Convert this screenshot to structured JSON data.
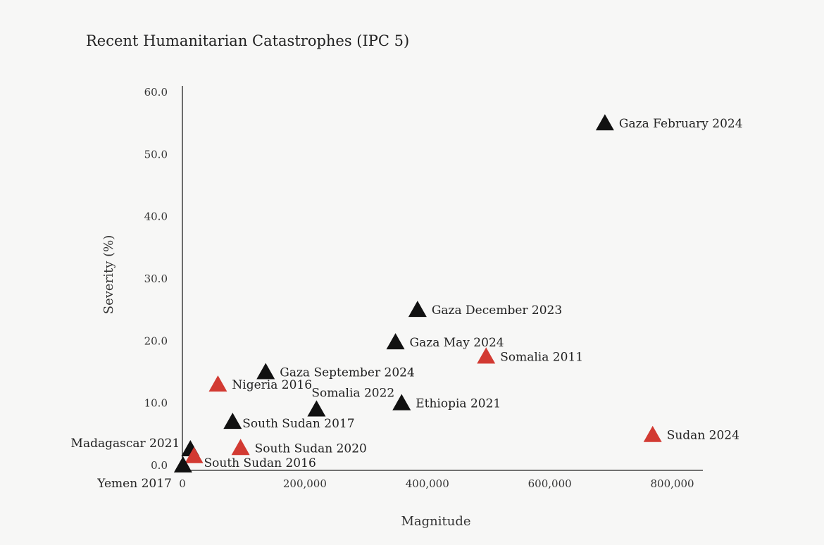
{
  "chart_data": {
    "type": "scatter",
    "title": "Recent Humanitarian Catastrophes (IPC 5)",
    "xlabel": "Magnitude",
    "ylabel": "Severity (%)",
    "xlim": [
      0,
      850000
    ],
    "ylim": [
      0,
      60
    ],
    "xticks": [
      {
        "value": 0,
        "label": "0"
      },
      {
        "value": 200000,
        "label": "200,000"
      },
      {
        "value": 400000,
        "label": "400,000"
      },
      {
        "value": 600000,
        "label": "600,000"
      },
      {
        "value": 800000,
        "label": "800,000"
      }
    ],
    "yticks": [
      {
        "value": 0,
        "label": "0.0"
      },
      {
        "value": 10,
        "label": "10.0"
      },
      {
        "value": 20,
        "label": "20.0"
      },
      {
        "value": 30,
        "label": "30.0"
      },
      {
        "value": 40,
        "label": "40.0"
      },
      {
        "value": 50,
        "label": "50.0"
      },
      {
        "value": 60,
        "label": "60.0"
      }
    ],
    "grid": false,
    "colors": {
      "black": "#111111",
      "red": "#d23a32"
    },
    "points": [
      {
        "label": "Gaza February 2024",
        "x": 690000,
        "y": 55.0,
        "color": "black",
        "anchor": "right"
      },
      {
        "label": "Gaza December 2023",
        "x": 384000,
        "y": 25.0,
        "color": "black",
        "anchor": "right"
      },
      {
        "label": "Gaza May 2024",
        "x": 348000,
        "y": 19.8,
        "color": "black",
        "anchor": "right"
      },
      {
        "label": "Somalia 2011",
        "x": 496000,
        "y": 17.5,
        "color": "red",
        "anchor": "right"
      },
      {
        "label": "Gaza September 2024",
        "x": 136000,
        "y": 15.0,
        "color": "black",
        "anchor": "right"
      },
      {
        "label": "Nigeria 2016",
        "x": 58000,
        "y": 13.0,
        "color": "red",
        "anchor": "right"
      },
      {
        "label": "Somalia 2022",
        "x": 219000,
        "y": 9.0,
        "color": "black",
        "anchor": "above"
      },
      {
        "label": "Ethiopia 2021",
        "x": 358000,
        "y": 10.0,
        "color": "black",
        "anchor": "right"
      },
      {
        "label": "South Sudan 2017",
        "x": 82000,
        "y": 7.0,
        "color": "black",
        "anchor": "right-tight"
      },
      {
        "label": "Sudan 2024",
        "x": 768000,
        "y": 4.9,
        "color": "red",
        "anchor": "right"
      },
      {
        "label": "South Sudan 2020",
        "x": 95000,
        "y": 2.8,
        "color": "red",
        "anchor": "right"
      },
      {
        "label": "Madagascar 2021",
        "x": 13000,
        "y": 2.6,
        "color": "black",
        "anchor": "left"
      },
      {
        "label": "South Sudan 2016",
        "x": 19000,
        "y": 1.5,
        "color": "red",
        "anchor": "right-below"
      },
      {
        "label": "Yemen 2017",
        "x": 1000,
        "y": 0.0,
        "color": "black",
        "anchor": "left-below"
      }
    ]
  }
}
